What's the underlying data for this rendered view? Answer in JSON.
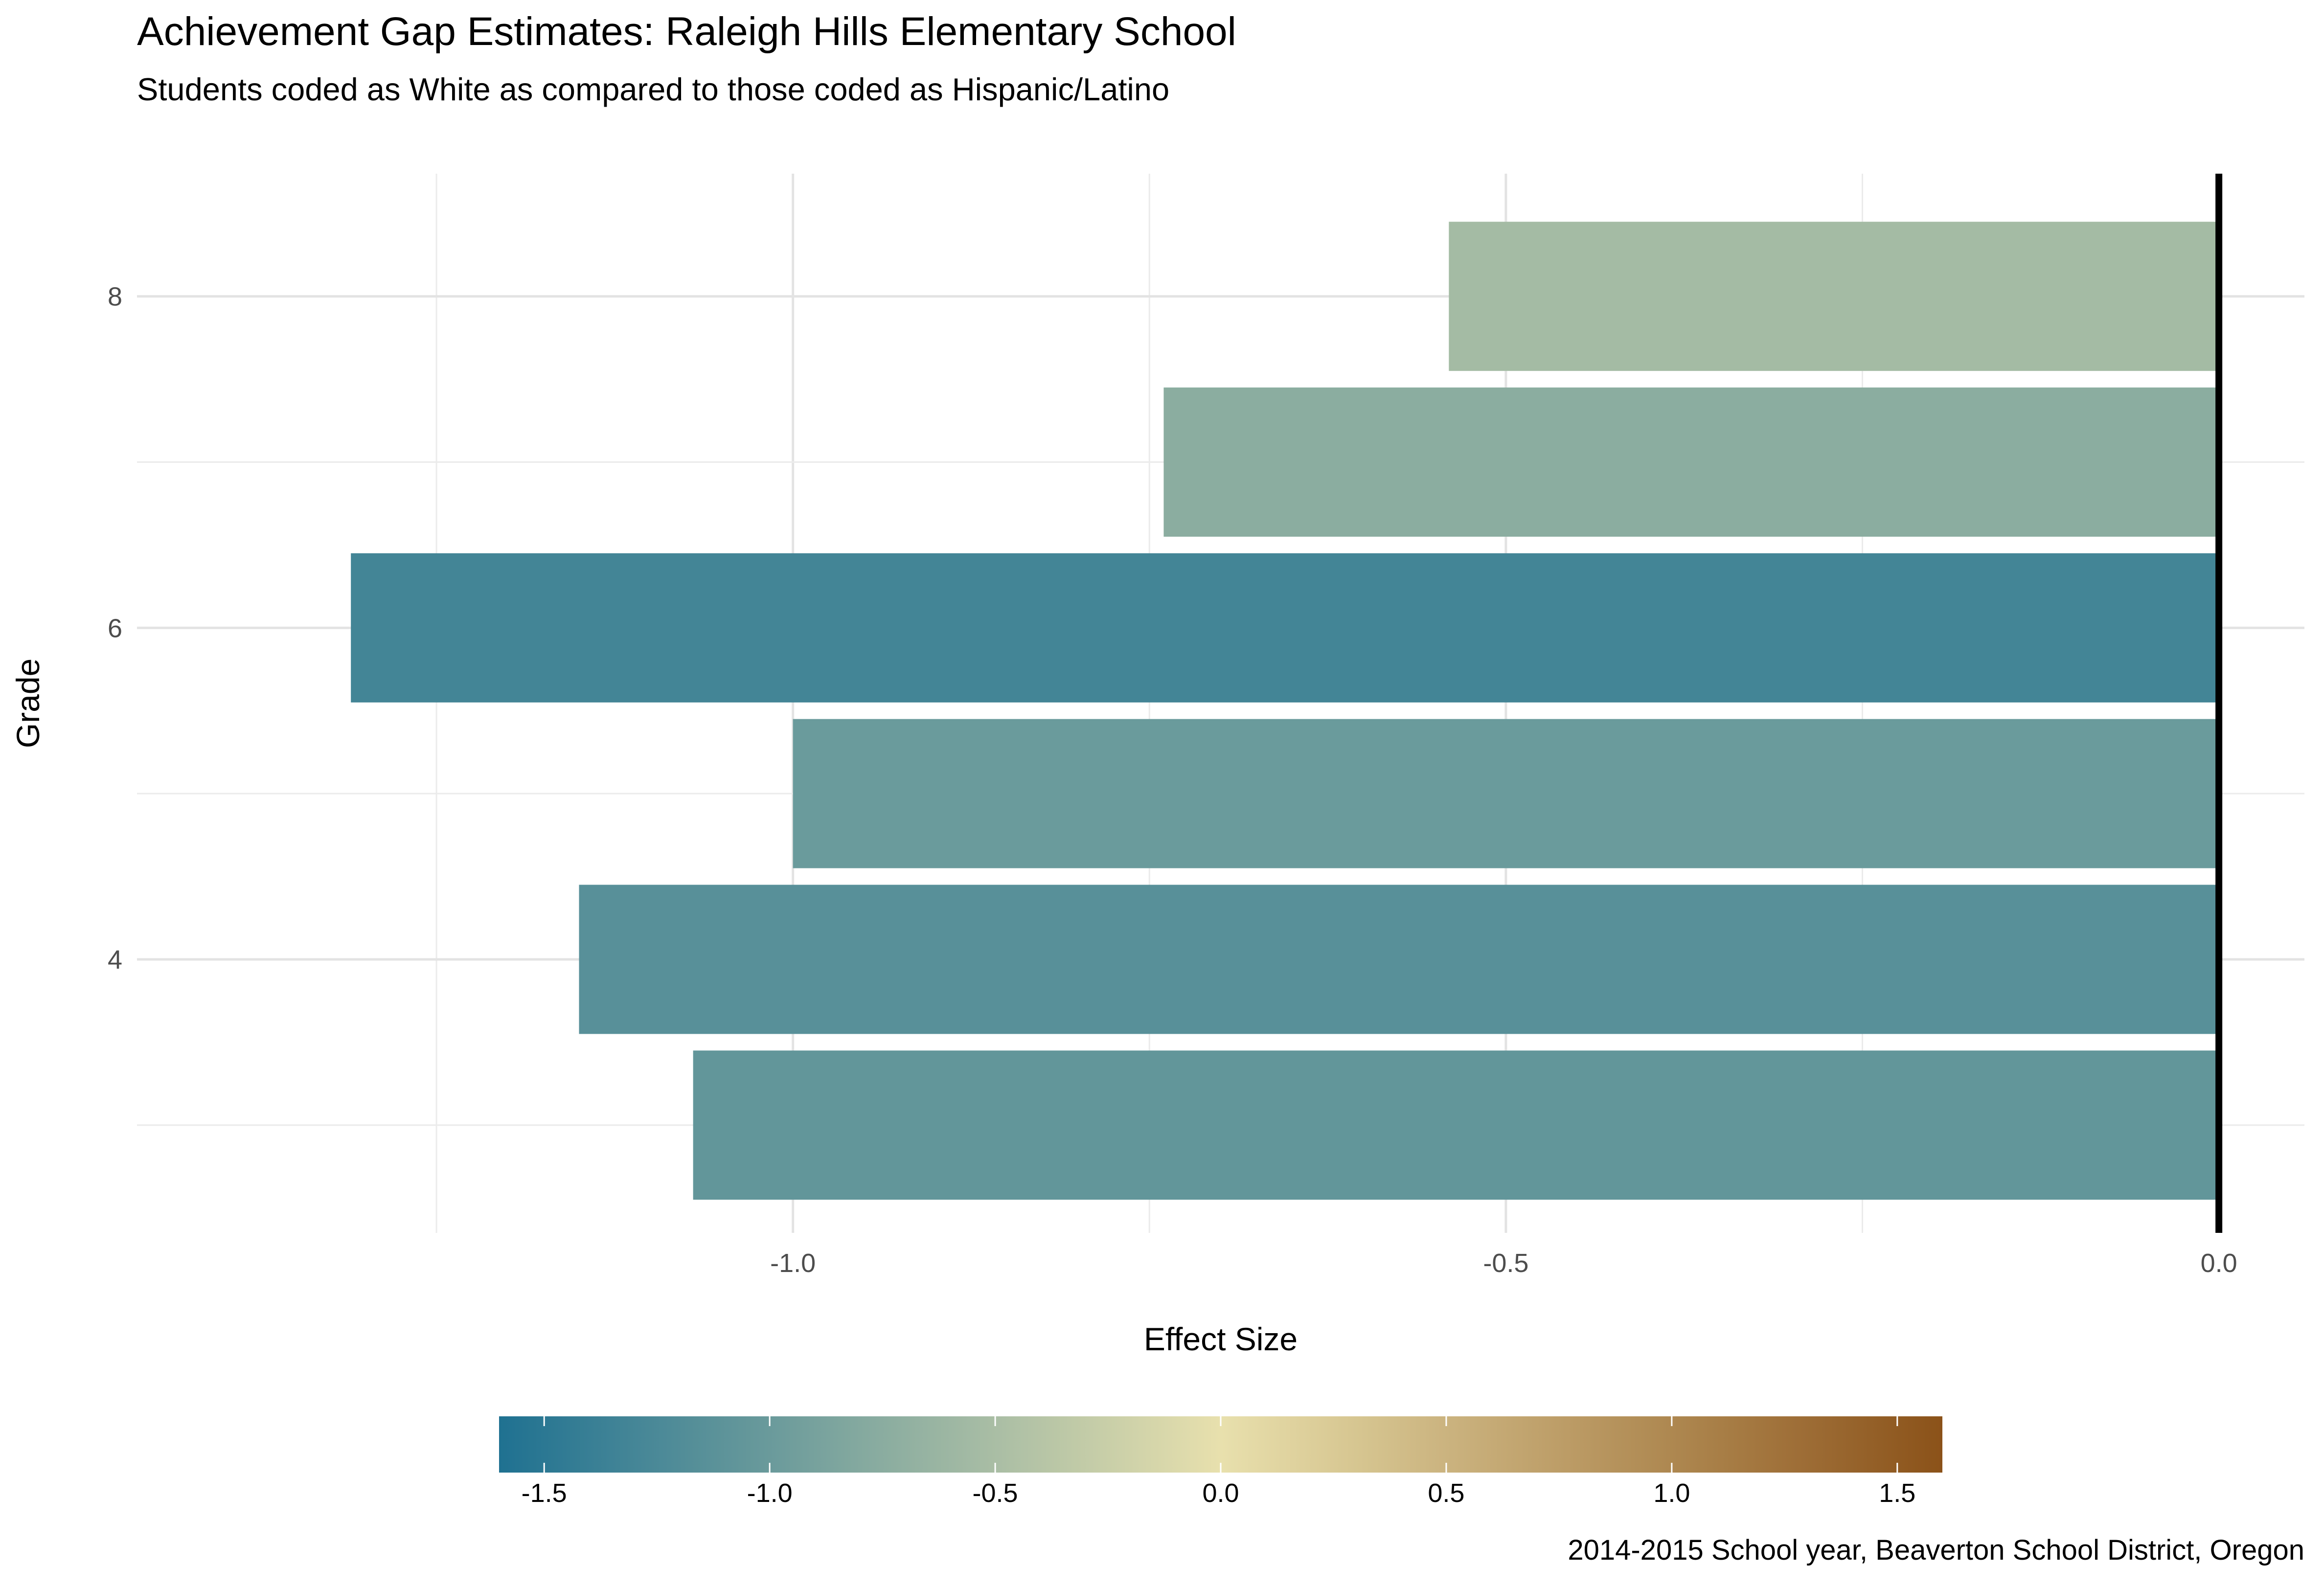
{
  "chart_data": {
    "type": "bar",
    "orientation": "horizontal",
    "title": "Achievement Gap Estimates: Raleigh Hills Elementary School",
    "subtitle": "Students coded as White as compared to those coded as Hispanic/Latino",
    "caption": "2014-2015 School year, Beaverton  School District, Oregon",
    "xlabel": "Effect Size",
    "ylabel": "Grade",
    "xlim": [
      -1.46,
      0.06
    ],
    "ylim": [
      2.35,
      8.74
    ],
    "x_ticks": [
      -1.0,
      -0.5,
      0.0
    ],
    "x_tick_labels": [
      "-1.0",
      "-0.5",
      "0.0"
    ],
    "y_ticks": [
      4,
      6,
      8
    ],
    "y_tick_labels": [
      "4",
      "6",
      "8"
    ],
    "grid": true,
    "reference_line_x": 0.0,
    "categories": [
      3,
      4,
      5,
      6,
      7,
      8
    ],
    "values": [
      -1.07,
      -1.15,
      -1.0,
      -1.31,
      -0.74,
      -0.54
    ],
    "color_scale": {
      "limits": [
        -1.6,
        1.6
      ],
      "ticks": [
        -1.5,
        -1.0,
        -0.5,
        0.0,
        0.5,
        1.0,
        1.5
      ],
      "tick_labels": [
        "-1.5",
        "-1.0",
        "-0.5",
        "0.0",
        "0.5",
        "1.0",
        "1.5"
      ],
      "low_color": "#1f7191",
      "mid_color": "#e8e0ad",
      "high_color": "#8b5219",
      "legend_position": "bottom"
    }
  }
}
